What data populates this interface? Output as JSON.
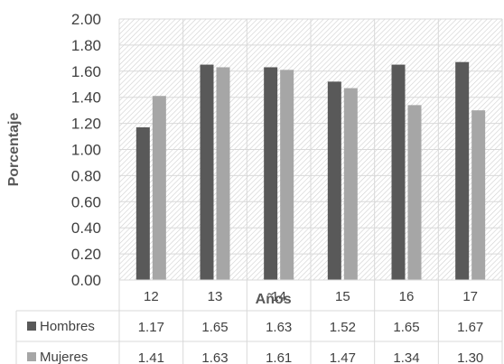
{
  "chart_data": {
    "type": "bar",
    "title": "",
    "xlabel": "Años",
    "ylabel": "Porcentaje",
    "ylim": [
      0,
      2
    ],
    "yticks": [
      "0.00",
      "0.20",
      "0.40",
      "0.60",
      "0.80",
      "1.00",
      "1.20",
      "1.40",
      "1.60",
      "1.80",
      "2.00"
    ],
    "categories": [
      "12",
      "13",
      "14",
      "15",
      "16",
      "17"
    ],
    "series": [
      {
        "name": "Hombres",
        "color": "#595959",
        "values": [
          1.17,
          1.65,
          1.63,
          1.52,
          1.65,
          1.67
        ],
        "labels": [
          "1.17",
          "1.65",
          "1.63",
          "1.52",
          "1.65",
          "1.67"
        ]
      },
      {
        "name": "Mujeres",
        "color": "#a6a6a6",
        "values": [
          1.41,
          1.63,
          1.61,
          1.47,
          1.34,
          1.3
        ],
        "labels": [
          "1.41",
          "1.63",
          "1.61",
          "1.47",
          "1.34",
          "1.30"
        ]
      }
    ],
    "grid": true,
    "plot_background": "hatched",
    "data_table": true,
    "legend": "data-table"
  }
}
